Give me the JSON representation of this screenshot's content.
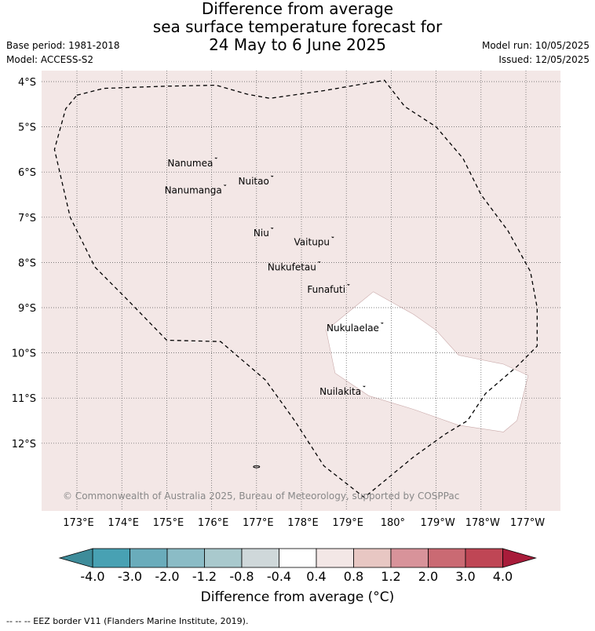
{
  "title": {
    "line1": "Difference from average",
    "line2": "sea surface temperature forecast for",
    "line3": "24 May to 6 June 2025"
  },
  "meta": {
    "base_period": "Base period: 1981-2018",
    "model": "Model: ACCESS-S2",
    "model_run": "Model run: 10/05/2025",
    "issued": "Issued: 12/05/2025"
  },
  "map": {
    "lat_ticks": [
      "4°S",
      "5°S",
      "6°S",
      "7°S",
      "8°S",
      "9°S",
      "10°S",
      "11°S",
      "12°S"
    ],
    "lon_ticks": [
      "173°E",
      "174°E",
      "175°E",
      "176°E",
      "177°E",
      "178°E",
      "179°E",
      "180°",
      "179°W",
      "178°W",
      "177°W"
    ],
    "places": [
      {
        "name": "Nanumea",
        "lon": 176.1,
        "lat": -5.7
      },
      {
        "name": "Nuitao",
        "lon": 177.35,
        "lat": -6.1
      },
      {
        "name": "Nanumanga",
        "lon": 176.3,
        "lat": -6.3
      },
      {
        "name": "Niu",
        "lon": 177.35,
        "lat": -7.25
      },
      {
        "name": "Vaitupu",
        "lon": 178.7,
        "lat": -7.45
      },
      {
        "name": "Nukufetau",
        "lon": 178.4,
        "lat": -8.0
      },
      {
        "name": "Funafuti",
        "lon": 179.05,
        "lat": -8.5
      },
      {
        "name": "Nukulaelae",
        "lon": 179.8,
        "lat": -9.35
      },
      {
        "name": "Nuilakita",
        "lon": 179.4,
        "lat": -10.75
      }
    ],
    "copyright": "© Commonwealth of Australia 2025, Bureau of Meteorology, supported by COSPPac",
    "background_color": "#f3e7e6",
    "neutral_color": "#ffffff"
  },
  "colorbar": {
    "labels": [
      "-4.0",
      "-3.0",
      "-2.0",
      "-1.2",
      "-0.8",
      "-0.4",
      "0.4",
      "0.8",
      "1.2",
      "2.0",
      "3.0",
      "4.0"
    ],
    "colors": [
      "#48a1b3",
      "#6aacbb",
      "#8bbcc6",
      "#a9c9cd",
      "#cfd8da",
      "#ffffff",
      "#f3e7e6",
      "#e8c7c3",
      "#d8939a",
      "#ca6a73",
      "#bf4655"
    ],
    "under_color": "#3e8c9a",
    "over_color": "#a81c3a",
    "title": "Difference from average (°C)"
  },
  "footer": "--  --  -- EEZ border V11 (Flanders Marine Institute, 2019)."
}
